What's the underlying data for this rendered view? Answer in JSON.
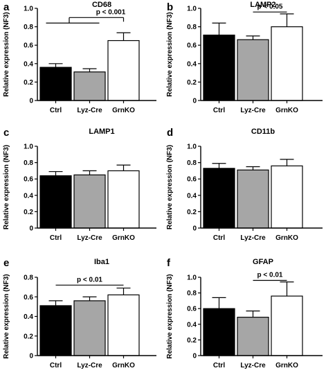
{
  "chart_data": [
    {
      "type": "bar",
      "panel": "a",
      "title": "CD68",
      "ylabel": "Relative expression (NF3)",
      "categories": [
        "Ctrl",
        "Lyz-Cre",
        "GrnKO"
      ],
      "values": [
        0.36,
        0.31,
        0.65
      ],
      "errors": [
        0.04,
        0.035,
        0.085
      ],
      "colors": [
        "#000000",
        "#a6a6a6",
        "#ffffff"
      ],
      "ylim": [
        0,
        1.0
      ],
      "yticks": [
        0,
        0.2,
        0.4,
        0.6,
        0.8,
        1.0
      ],
      "ytick_labels": [
        "0",
        "0.2",
        "0.4",
        "0.6",
        "0.8",
        "1.0"
      ],
      "significance": {
        "label": "p < 0.001",
        "type": "group",
        "from": [
          0,
          1
        ],
        "to": 2,
        "level": 0.9,
        "group_level": 0.84
      }
    },
    {
      "type": "bar",
      "panel": "b",
      "title": "LAMP2",
      "ylabel": "Relative expression (NF3)",
      "categories": [
        "Ctrl",
        "Lyz-Cre",
        "GrnKO"
      ],
      "values": [
        0.71,
        0.66,
        0.8
      ],
      "errors": [
        0.13,
        0.04,
        0.14
      ],
      "colors": [
        "#000000",
        "#a6a6a6",
        "#ffffff"
      ],
      "ylim": [
        0,
        1.0
      ],
      "yticks": [
        0,
        0.2,
        0.4,
        0.6,
        0.8,
        1.0
      ],
      "ytick_labels": [
        "0",
        "0.2",
        "0.4",
        "0.6",
        "0.8",
        "1.0"
      ],
      "significance": {
        "label": "p < 0.05",
        "type": "line",
        "from": 1,
        "to": 2,
        "level": 0.96
      }
    },
    {
      "type": "bar",
      "panel": "c",
      "title": "LAMP1",
      "ylabel": "Relative expression (NF3)",
      "categories": [
        "Ctrl",
        "Lyz-Cre",
        "GrnKO"
      ],
      "values": [
        0.64,
        0.65,
        0.7
      ],
      "errors": [
        0.05,
        0.05,
        0.07
      ],
      "colors": [
        "#000000",
        "#a6a6a6",
        "#ffffff"
      ],
      "ylim": [
        0,
        1.0
      ],
      "yticks": [
        0,
        0.2,
        0.4,
        0.6,
        0.8,
        1.0
      ],
      "ytick_labels": [
        "0",
        "0.2",
        "0.4",
        "0.6",
        "0.8",
        "1.0"
      ]
    },
    {
      "type": "bar",
      "panel": "d",
      "title": "CD11b",
      "ylabel": "Relative expression (NF3)",
      "categories": [
        "Ctrl",
        "Lyz-Cre",
        "GrnKO"
      ],
      "values": [
        0.73,
        0.71,
        0.76
      ],
      "errors": [
        0.06,
        0.04,
        0.08
      ],
      "colors": [
        "#000000",
        "#a6a6a6",
        "#ffffff"
      ],
      "ylim": [
        0,
        1.0
      ],
      "yticks": [
        0,
        0.2,
        0.4,
        0.6,
        0.8,
        1.0
      ],
      "ytick_labels": [
        "0",
        "0.2",
        "0.4",
        "0.6",
        "0.8",
        "1.0"
      ]
    },
    {
      "type": "bar",
      "panel": "e",
      "title": "Iba1",
      "ylabel": "Relative expression (NF3)",
      "categories": [
        "Ctrl",
        "Lyz-Cre",
        "GrnKO"
      ],
      "values": [
        0.51,
        0.56,
        0.62
      ],
      "errors": [
        0.05,
        0.04,
        0.07
      ],
      "colors": [
        "#000000",
        "#a6a6a6",
        "#ffffff"
      ],
      "ylim": [
        0,
        0.8
      ],
      "yticks": [
        0,
        0.2,
        0.4,
        0.6,
        0.8
      ],
      "ytick_labels": [
        "0",
        "0.2",
        "0.4",
        "0.6",
        "0.8"
      ],
      "significance": {
        "label": "p < 0.01",
        "type": "line",
        "from": 0,
        "to": 2,
        "level": 0.72
      }
    },
    {
      "type": "bar",
      "panel": "f",
      "title": "GFAP",
      "ylabel": "Relative expression (NF3)",
      "categories": [
        "Ctrl",
        "Lyz-Cre",
        "GrnKO"
      ],
      "values": [
        0.6,
        0.49,
        0.76
      ],
      "errors": [
        0.14,
        0.08,
        0.18
      ],
      "colors": [
        "#000000",
        "#a6a6a6",
        "#ffffff"
      ],
      "ylim": [
        0,
        1.0
      ],
      "yticks": [
        0,
        0.2,
        0.4,
        0.6,
        0.8,
        1.0
      ],
      "ytick_labels": [
        "0",
        "0.2",
        "0.4",
        "0.6",
        "0.8",
        "1.0"
      ],
      "significance": {
        "label": "p < 0.01",
        "type": "line",
        "from": 1,
        "to": 2,
        "level": 0.96
      }
    }
  ]
}
